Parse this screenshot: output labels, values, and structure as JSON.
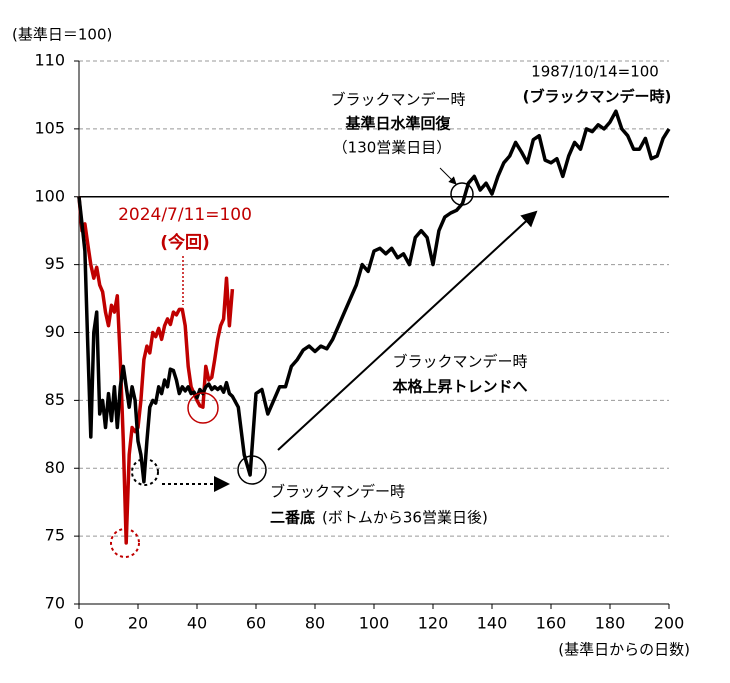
{
  "chart_data": {
    "type": "line",
    "y_label": "(基準日＝100)",
    "x_label": "(基準日からの日数)",
    "xlim": [
      0,
      200
    ],
    "xticks": [
      0,
      20,
      40,
      60,
      80,
      100,
      120,
      140,
      160,
      180,
      200
    ],
    "ylim": [
      70,
      110
    ],
    "yticks": [
      70,
      75,
      80,
      85,
      90,
      95,
      100,
      105,
      110
    ],
    "grid": true,
    "reference_line": 100,
    "series": [
      {
        "color": "#000000",
        "x": [
          0,
          1,
          2,
          3,
          4,
          5,
          6,
          7,
          8,
          9,
          10,
          11,
          12,
          13,
          14,
          15,
          16,
          17,
          18,
          19,
          20,
          21,
          22,
          23,
          24,
          25,
          26,
          27,
          28,
          29,
          30,
          31,
          32,
          33,
          34,
          35,
          36,
          37,
          38,
          39,
          40,
          41,
          42,
          43,
          44,
          45,
          46,
          47,
          48,
          49,
          50,
          51,
          52,
          54,
          56,
          58,
          60,
          62,
          64,
          66,
          68,
          70,
          72,
          74,
          76,
          78,
          80,
          82,
          84,
          86,
          88,
          90,
          92,
          94,
          96,
          98,
          100,
          102,
          104,
          106,
          108,
          110,
          112,
          114,
          116,
          118,
          120,
          122,
          124,
          126,
          128,
          130,
          132,
          134,
          136,
          138,
          140,
          142,
          144,
          146,
          148,
          150,
          152,
          154,
          156,
          158,
          160,
          162,
          164,
          166,
          168,
          170,
          172,
          174,
          176,
          178,
          180,
          182,
          184,
          186,
          188,
          190,
          192,
          194,
          196,
          198,
          200
        ],
        "values": [
          100,
          98,
          96,
          89,
          82.3,
          90,
          91.5,
          84,
          85,
          83,
          85.5,
          83.5,
          86,
          83,
          86,
          87.5,
          86,
          84.5,
          86,
          85,
          82,
          81,
          79,
          82,
          84.5,
          85,
          84.8,
          86,
          85.5,
          86.5,
          86,
          87.3,
          87.2,
          86.5,
          85.5,
          86,
          85.7,
          86,
          85.5,
          85.6,
          85.2,
          85.8,
          85.5,
          86,
          86.2,
          85.8,
          86,
          85.8,
          86,
          85.6,
          86.3,
          85.5,
          85.3,
          84.5,
          81,
          79.5,
          85.5,
          85.8,
          84,
          85,
          86,
          86,
          87.5,
          88,
          88.7,
          89,
          88.6,
          89,
          88.8,
          89.5,
          90.5,
          91.5,
          92.5,
          93.5,
          95,
          94.5,
          96,
          96.2,
          95.8,
          96.2,
          95.5,
          95.8,
          95,
          97,
          97.5,
          97,
          95,
          97.5,
          98.5,
          98.8,
          99,
          99.5,
          101,
          101.5,
          100.5,
          101,
          100.2,
          101.5,
          102.5,
          103,
          104,
          103.3,
          102.5,
          104.2,
          104.5,
          102.7,
          102.5,
          102.8,
          101.5,
          103,
          104,
          103.5,
          105,
          104.8,
          105.3,
          105,
          105.5,
          106.3,
          105,
          104.5,
          103.5,
          103.5,
          104.3,
          102.8,
          103,
          104.3,
          105
        ]
      },
      {
        "color": "#c00000",
        "x": [
          0,
          1,
          2,
          3,
          4,
          5,
          6,
          7,
          8,
          9,
          10,
          11,
          12,
          13,
          14,
          15,
          16,
          17,
          18,
          19,
          20,
          21,
          22,
          23,
          24,
          25,
          26,
          27,
          28,
          29,
          30,
          31,
          32,
          33,
          34,
          35,
          36,
          37,
          38,
          39,
          40,
          41,
          42,
          43,
          44,
          45,
          46,
          47,
          48,
          49,
          50,
          51,
          52
        ],
        "values": [
          100,
          97.5,
          98,
          96.5,
          95,
          94,
          94.8,
          93.5,
          93,
          91.5,
          90.5,
          92,
          91.5,
          92.7,
          88,
          82,
          74.5,
          81,
          83,
          82.7,
          83,
          85,
          88,
          89,
          88.5,
          90,
          89.7,
          90.3,
          89.5,
          90.5,
          91,
          90.6,
          91.5,
          91.3,
          91.7,
          91.7,
          90.5,
          87.5,
          86,
          85.5,
          85,
          84.6,
          84.5,
          87.5,
          86.5,
          86.7,
          88,
          89.5,
          90.5,
          91,
          94,
          90.5,
          93.2
        ]
      }
    ],
    "annotations": [
      "1987/10/14=100",
      "(ブラックマンデー時)",
      "ブラックマンデー時",
      "基準日水準回復",
      "（130営業日目）",
      "2024/7/11=100",
      "(今回)",
      "ブラックマンデー時",
      "本格上昇トレンドへ",
      "ブラックマンデー時",
      "二番底",
      "(ボトムから36営業日後)"
    ]
  }
}
